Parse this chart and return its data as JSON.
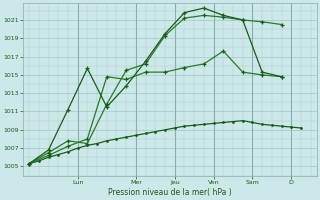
{
  "bg_color": "#cce8e8",
  "grid_color": "#aacccc",
  "line_color1": "#1a5c1a",
  "line_color2": "#2a7a2a",
  "xlabel": "Pression niveau de la mer( hPa )",
  "yticks": [
    1005,
    1007,
    1009,
    1011,
    1013,
    1015,
    1017,
    1019,
    1021
  ],
  "ylim": [
    1004.0,
    1022.8
  ],
  "xlim": [
    -0.3,
    14.8
  ],
  "day_labels": [
    "Lun",
    "Mer",
    "Jeu",
    "Ven",
    "Sam",
    "D"
  ],
  "day_positions": [
    2.5,
    5.5,
    7.5,
    9.5,
    11.5,
    13.5
  ],
  "series1_x": [
    0,
    0.5,
    1,
    1.5,
    2,
    2.5,
    3,
    3.5,
    4,
    4.5,
    5,
    5.5,
    6,
    6.5,
    7,
    7.5,
    8,
    8.5,
    9,
    9.5,
    10,
    10.5,
    11,
    11.5,
    12,
    12.5,
    13,
    13.5,
    14
  ],
  "series1_y": [
    1005.3,
    1005.6,
    1006.0,
    1006.3,
    1006.6,
    1007.0,
    1007.3,
    1007.5,
    1007.8,
    1008.0,
    1008.2,
    1008.4,
    1008.6,
    1008.8,
    1009.0,
    1009.2,
    1009.4,
    1009.5,
    1009.6,
    1009.7,
    1009.8,
    1009.9,
    1010.0,
    1009.8,
    1009.6,
    1009.5,
    1009.4,
    1009.3,
    1009.2
  ],
  "series2_x": [
    0,
    1,
    2,
    3,
    4,
    5,
    6,
    7,
    8,
    9,
    10,
    11,
    12,
    13
  ],
  "series2_y": [
    1005.3,
    1006.2,
    1007.2,
    1008.0,
    1014.8,
    1014.5,
    1015.3,
    1015.3,
    1015.8,
    1016.2,
    1017.6,
    1015.3,
    1015.0,
    1014.8
  ],
  "series3_x": [
    0,
    1,
    2,
    3,
    4,
    5,
    6,
    7,
    8,
    9,
    10,
    11,
    12,
    13
  ],
  "series3_y": [
    1005.3,
    1006.5,
    1007.8,
    1007.5,
    1011.8,
    1015.5,
    1016.2,
    1019.3,
    1021.2,
    1021.5,
    1021.3,
    1021.0,
    1020.8,
    1020.5
  ],
  "series4_x": [
    0,
    1,
    2,
    3,
    4,
    5,
    6,
    7,
    8,
    9,
    10,
    11,
    12,
    13
  ],
  "series4_y": [
    1005.3,
    1006.8,
    1011.2,
    1015.7,
    1011.5,
    1013.8,
    1016.5,
    1019.5,
    1021.8,
    1022.3,
    1021.5,
    1021.0,
    1015.3,
    1014.8
  ]
}
